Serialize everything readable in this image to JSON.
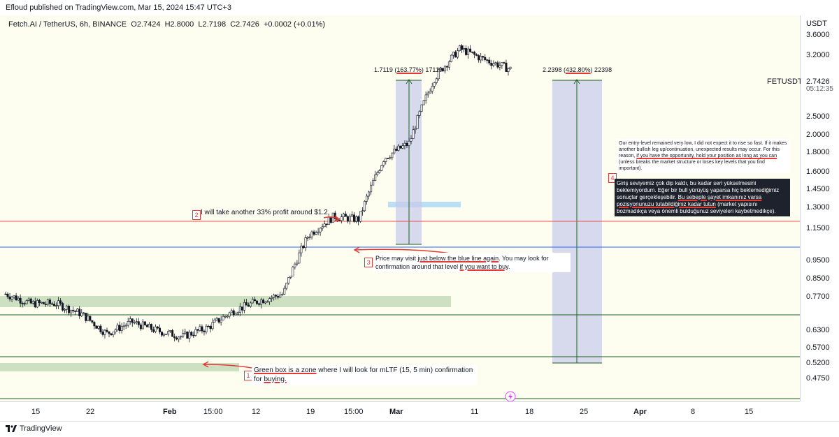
{
  "header": {
    "published": "Efloud published on TradingView.com, Mar 15, 2024 15:47 UTC+3"
  },
  "legend": {
    "symbol": "Fetch.AI / TetherUS, 6h, BINANCE",
    "o": "O2.7424",
    "h": "H2.8000",
    "l": "L2.7198",
    "c": "C2.7426",
    "chg": "+0.0002 (+0.01%)"
  },
  "price_axis": {
    "currency": "USDT",
    "ticks": [
      "3.6000",
      "3.2000",
      "2.5000",
      "2.0000",
      "1.8000",
      "1.6000",
      "1.4500",
      "1.3000",
      "1.1500",
      "0.9500",
      "0.8500",
      "0.7700",
      "0.6300",
      "0.5700",
      "0.5200",
      "0.4750"
    ],
    "symbol_tag": "FETUSDT",
    "current_price": "2.7426",
    "countdown": "05:12:35"
  },
  "price_labels": [
    {
      "text": "1.1985",
      "color": "#ef5350"
    },
    {
      "text": "1.0285",
      "color": "#2962ff"
    },
    {
      "text": "0.6846",
      "color": "#1b5e20"
    },
    {
      "text": "0.5400",
      "color": "#1b5e20"
    },
    {
      "text": "0.4149",
      "color": "#1b5e20"
    }
  ],
  "time_axis": {
    "ticks": [
      "15",
      "22",
      "Feb",
      "15:00",
      "12",
      "19",
      "15:00",
      "Mar",
      "11",
      "18",
      "25",
      "Apr",
      "8",
      "15"
    ]
  },
  "measures": [
    {
      "pre": "1.7119 (",
      "pct": "163.77%",
      "post": ") 17119"
    },
    {
      "pre": "2.2398 (",
      "pct": "432.80%",
      "post": ") 22398"
    }
  ],
  "notes": {
    "n1": {
      "num": "1",
      "pre": "",
      "u1": "Green box is a zone",
      "mid": " where I will look for mLTF (15, 5 min) confirmation for ",
      "u2": "buying."
    },
    "n2": {
      "num": "2",
      "text": "I will take another 33% profit around $1.2."
    },
    "n3": {
      "num": "3",
      "pre": "Price may visit ",
      "u1": "just below the blue line again",
      "mid": ". You may look for confirmation around that level ",
      "u2": "if you want to buy",
      "post": "."
    },
    "n4": {
      "num": "4"
    },
    "en": {
      "pre": "Our entry-level remained very low, I did not expect it to rise so fast. If it makes another bullish leg up/continuation, unexpected results may occur. For this reason, ",
      "u": "if you have the opportunity, hold your position as long as you can",
      "post": " (unless breaks the market structure or loses key levels that you find important)."
    },
    "tr": {
      "pre": "Giriş seviyemiz çok dip kaldı, bu kadar seri yükselmesini beklemiyordum. Eğer bir bull yürüyüş yaparsa hiç beklemediğimiz sonuçlar gerçekleşebilir. ",
      "u": "Bu sebeple şayet imkanınız varsa pozisyonunuzu tutabildiğiniz kadar tutun",
      "post": " (market yapısını bozmadıkça veya önemli bulduğunuz seviyeleri kaybetmedikçe)."
    }
  },
  "footer": {
    "brand": "TradingView"
  },
  "chart_data": {
    "type": "candlestick",
    "title": "Fetch.AI / TetherUS, 6h, BINANCE",
    "x": [
      "Jan 9",
      "Jan 12",
      "Jan 15",
      "Jan 18",
      "Jan 22",
      "Jan 25",
      "Feb 1",
      "Feb 5",
      "Feb 8",
      "Feb 12",
      "Feb 15",
      "Feb 19",
      "Feb 22",
      "Feb 26",
      "Mar 1",
      "Mar 4",
      "Mar 7",
      "Mar 9",
      "Mar 11",
      "Mar 13",
      "Mar 15"
    ],
    "close": [
      0.7,
      0.66,
      0.66,
      0.62,
      0.55,
      0.59,
      0.56,
      0.54,
      0.57,
      0.63,
      0.67,
      0.7,
      1.0,
      1.12,
      1.1,
      1.6,
      1.75,
      2.6,
      3.1,
      2.9,
      2.74
    ],
    "ylim": [
      0.4,
      3.8
    ],
    "y_scale": "log",
    "levels": [
      1.1985,
      1.0285,
      0.6846,
      0.54,
      0.4149
    ]
  }
}
